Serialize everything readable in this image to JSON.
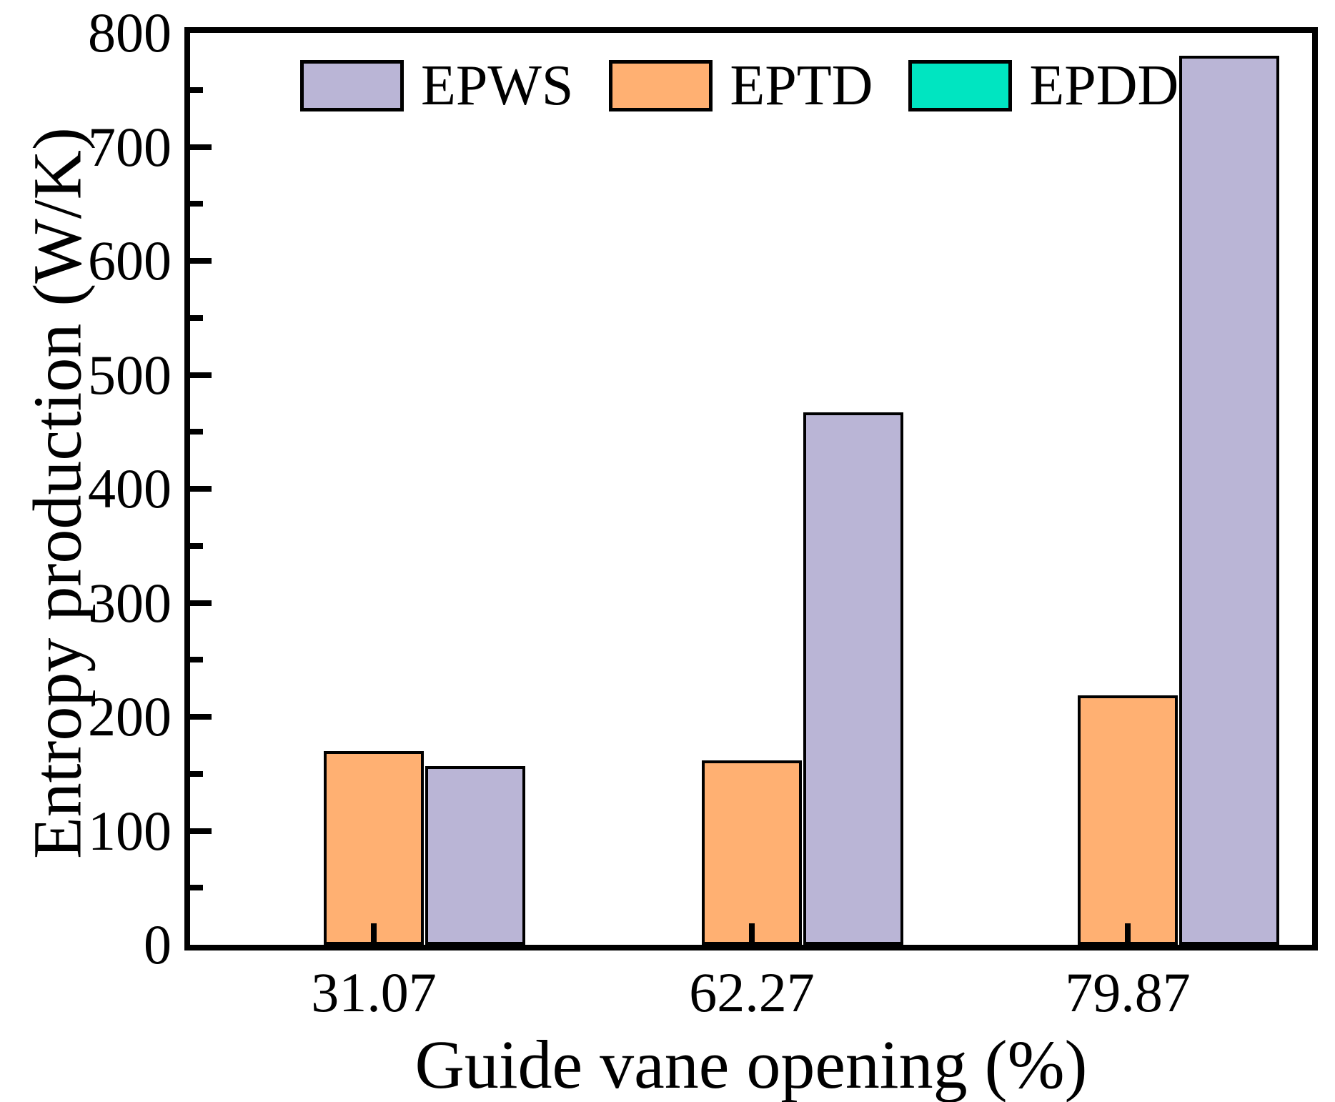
{
  "chart_data": {
    "type": "bar",
    "title": "",
    "xlabel": "Guide vane opening (%)",
    "ylabel": "Entropy production (W/K)",
    "categories": [
      "31.07",
      "62.27",
      "79.87"
    ],
    "series": [
      {
        "name": "EPWS",
        "color": "#bab5d6",
        "values": [
          157,
          467,
          780
        ]
      },
      {
        "name": "EPTD",
        "color": "#ffb072",
        "values": [
          170,
          162,
          219
        ]
      },
      {
        "name": "EPDD",
        "color": "#00e5c1",
        "values": [
          0,
          0,
          0
        ]
      }
    ],
    "group_draw_order": [
      "EPDD",
      "EPTD",
      "EPWS"
    ],
    "ylim": [
      0,
      800
    ],
    "yticks": [
      0,
      100,
      200,
      300,
      400,
      500,
      600,
      700,
      800
    ],
    "ytick_minor_step": 50,
    "grid": false,
    "legend_position": "top-inside",
    "bar_outline_color": "#000000",
    "axis_color": "#000000"
  }
}
